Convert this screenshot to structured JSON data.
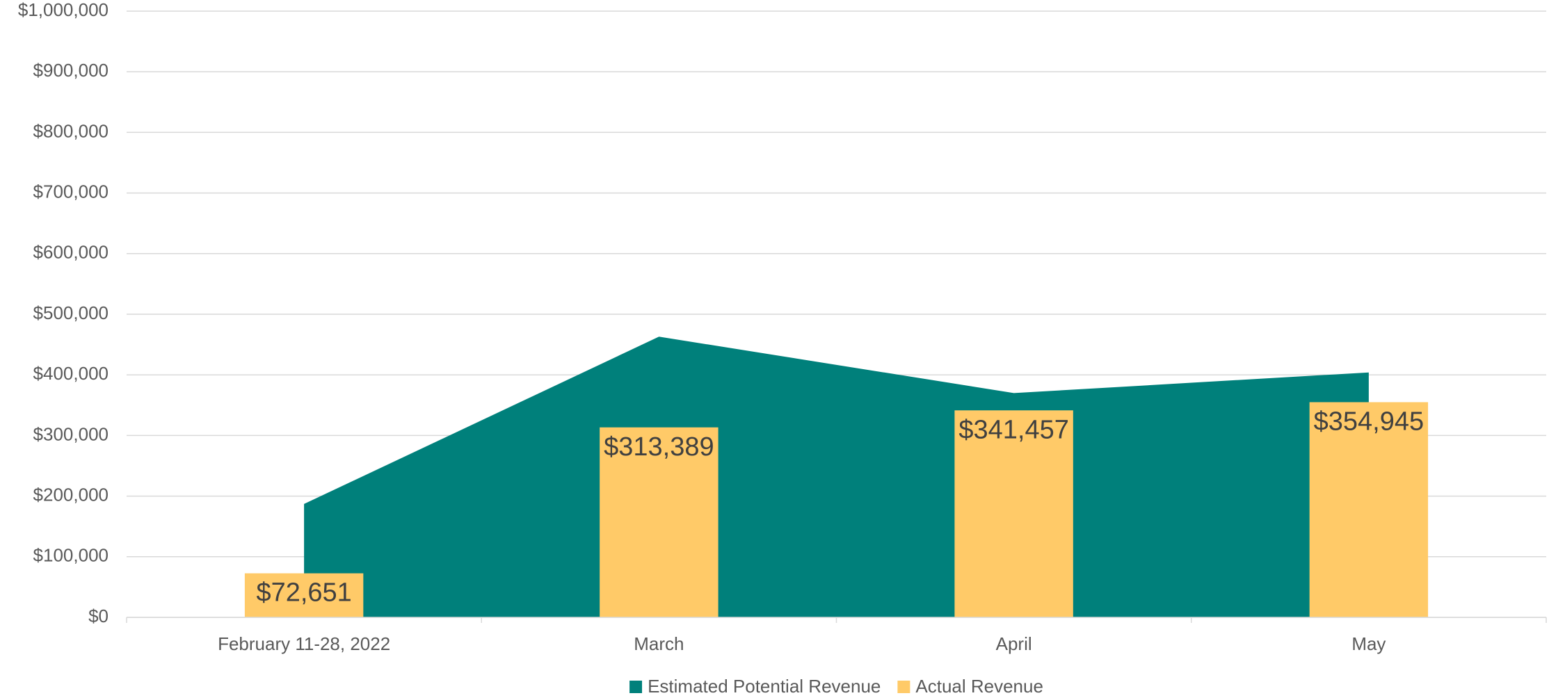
{
  "chart_data": {
    "type": "area_bar",
    "categories": [
      "February 11-28, 2022",
      "March",
      "April",
      "May"
    ],
    "series": [
      {
        "name": "Estimated Potential Revenue",
        "type": "area",
        "color": "#00807b",
        "values": [
          187000,
          463000,
          370000,
          404000
        ]
      },
      {
        "name": "Actual Revenue",
        "type": "bar",
        "color": "#ffca68",
        "values": [
          72651,
          313389,
          341457,
          354945
        ],
        "value_labels": [
          "$72,651",
          "$313,389",
          "$341,457",
          "$354,945"
        ]
      }
    ],
    "ylim": [
      0,
      1000000
    ],
    "yticks": [
      {
        "value": 0,
        "label": "$0"
      },
      {
        "value": 100000,
        "label": "$100,000"
      },
      {
        "value": 200000,
        "label": "$200,000"
      },
      {
        "value": 300000,
        "label": "$300,000"
      },
      {
        "value": 400000,
        "label": "$400,000"
      },
      {
        "value": 500000,
        "label": "$500,000"
      },
      {
        "value": 600000,
        "label": "$600,000"
      },
      {
        "value": 700000,
        "label": "$700,000"
      },
      {
        "value": 800000,
        "label": "$800,000"
      },
      {
        "value": 900000,
        "label": "$900,000"
      },
      {
        "value": 1000000,
        "label": "$1,000,000"
      }
    ],
    "grid": true,
    "legend": "bottom"
  }
}
